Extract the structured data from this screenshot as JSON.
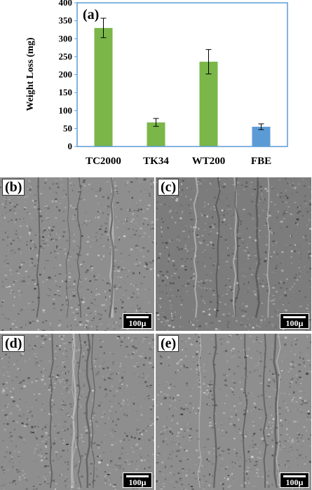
{
  "chart_data": {
    "type": "bar",
    "panel_label": "(a)",
    "categories": [
      "TC2000",
      "TK34",
      "WT200",
      "FBE"
    ],
    "values": [
      330,
      67,
      236,
      55
    ],
    "errors": [
      27,
      11,
      34,
      8
    ],
    "bar_colors": [
      "#7ab648",
      "#7ab648",
      "#7ab648",
      "#5b9bd5"
    ],
    "ylabel": "Weight Loss (mg)",
    "xlabel": "",
    "ylim": [
      0,
      400
    ],
    "yticks": [
      0,
      50,
      100,
      150,
      200,
      250,
      300,
      350,
      400
    ],
    "grid": false,
    "legend": "none",
    "frame_color": "#5b9bd5"
  },
  "micrographs": [
    {
      "label": "(b)",
      "scale": "100µ"
    },
    {
      "label": "(c)",
      "scale": "100µ"
    },
    {
      "label": "(d)",
      "scale": "100µ"
    },
    {
      "label": "(e)",
      "scale": "100µ"
    }
  ]
}
